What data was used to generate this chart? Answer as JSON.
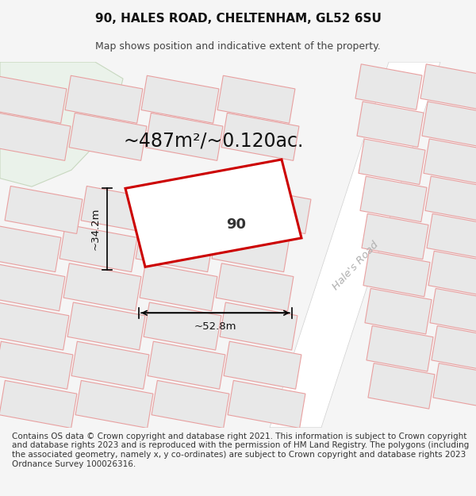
{
  "title_line1": "90, HALES ROAD, CHELTENHAM, GL52 6SU",
  "title_line2": "Map shows position and indicative extent of the property.",
  "area_text": "~487m²/~0.120ac.",
  "width_label": "~52.8m",
  "height_label": "~34.2m",
  "property_label": "90",
  "road_label": "Hale's Road",
  "footer_text": "Contains OS data © Crown copyright and database right 2021. This information is subject to Crown copyright and database rights 2023 and is reproduced with the permission of HM Land Registry. The polygons (including the associated geometry, namely x, y co-ordinates) are subject to Crown copyright and database rights 2023 Ordnance Survey 100026316.",
  "bg_color": "#f5f5f5",
  "map_bg": "#ffffff",
  "green_area": "#eaf2ea",
  "plot_fill": "#ffffff",
  "plot_edge": "#cc0000",
  "other_plot_fill": "#e8e8e8",
  "other_plot_edge": "#e8a0a0",
  "title_fontsize": 11,
  "subtitle_fontsize": 9,
  "area_fontsize": 17,
  "footer_fontsize": 7.5
}
